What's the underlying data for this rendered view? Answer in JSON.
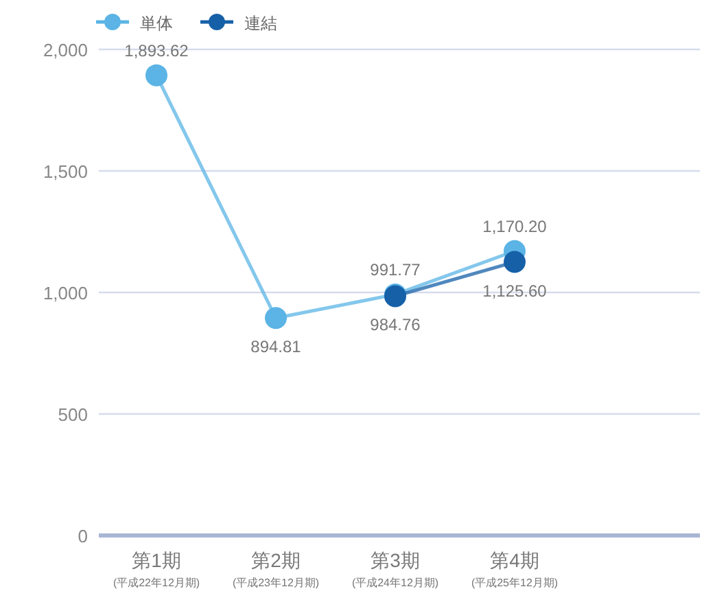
{
  "chart_data": {
    "type": "line",
    "categories": [
      "第1期\n(平成22年12月期)",
      "第2期\n(平成23年12月期)",
      "第3期\n(平成24年12月期)",
      "第4期\n(平成25年12月期)"
    ],
    "series": [
      {
        "name": "単体",
        "color": "#5bb4e5",
        "values": [
          1893.62,
          894.81,
          991.77,
          1170.2
        ],
        "value_labels": [
          "1,893.62",
          "894.81",
          "991.77",
          "1,170.20"
        ]
      },
      {
        "name": "連結",
        "color": "#1660a8",
        "values": [
          null,
          null,
          984.76,
          1125.6
        ],
        "value_labels": [
          null,
          null,
          "984.76",
          "1,125.60"
        ]
      }
    ],
    "ylim": [
      0,
      2000
    ],
    "yticks": [
      {
        "value": 0,
        "label": "0"
      },
      {
        "value": 500,
        "label": "500"
      },
      {
        "value": 1000,
        "label": "1,000"
      },
      {
        "value": 1500,
        "label": "1,500"
      },
      {
        "value": 2000,
        "label": "2,000"
      }
    ],
    "grid": "y",
    "legend": "top left",
    "marker": "circle",
    "line_style": "solid"
  }
}
